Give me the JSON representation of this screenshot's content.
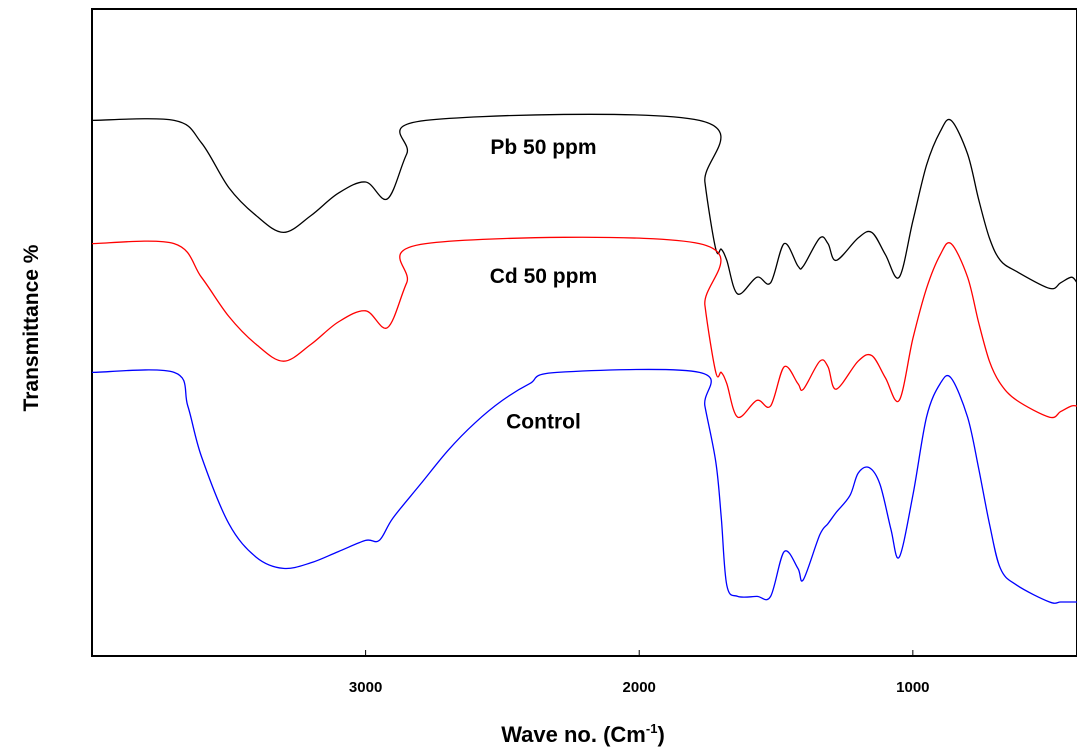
{
  "chart_data": {
    "type": "line",
    "title": "",
    "xlabel": "Wave no. (Cm",
    "xlabel_superscript": "-1",
    "xlabel_close": ")",
    "ylabel": "Transmittance %",
    "x_reversed": true,
    "xlim": [
      4000,
      400
    ],
    "ylim": [
      0,
      100
    ],
    "grid": false,
    "legend": "none",
    "x_ticks": [
      {
        "value": 3000,
        "label": "3000"
      },
      {
        "value": 2000,
        "label": "2000"
      },
      {
        "value": 1000,
        "label": "1000"
      }
    ],
    "series": [
      {
        "name": "Pb 50 ppm",
        "color": "#000000",
        "points": [
          [
            4000,
            91
          ],
          [
            3700,
            91
          ],
          [
            3600,
            87
          ],
          [
            3500,
            79
          ],
          [
            3400,
            74
          ],
          [
            3300,
            71
          ],
          [
            3200,
            74
          ],
          [
            3100,
            78
          ],
          [
            3000,
            80
          ],
          [
            2920,
            77
          ],
          [
            2850,
            85
          ],
          [
            2780,
            91
          ],
          [
            1780,
            91
          ],
          [
            1760,
            80
          ],
          [
            1720,
            68
          ],
          [
            1700,
            68
          ],
          [
            1680,
            66
          ],
          [
            1640,
            60
          ],
          [
            1570,
            63
          ],
          [
            1520,
            62
          ],
          [
            1470,
            69
          ],
          [
            1420,
            65
          ],
          [
            1400,
            65
          ],
          [
            1340,
            70
          ],
          [
            1310,
            69
          ],
          [
            1280,
            66
          ],
          [
            1200,
            70
          ],
          [
            1150,
            71
          ],
          [
            1100,
            67
          ],
          [
            1050,
            63
          ],
          [
            1000,
            73
          ],
          [
            950,
            83
          ],
          [
            900,
            89
          ],
          [
            860,
            91
          ],
          [
            800,
            85
          ],
          [
            760,
            77
          ],
          [
            720,
            70
          ],
          [
            680,
            66
          ],
          [
            620,
            64
          ],
          [
            500,
            61
          ],
          [
            460,
            62
          ],
          [
            420,
            63
          ],
          [
            400,
            62
          ]
        ]
      },
      {
        "name": "Cd 50 ppm",
        "color": "#ff0000",
        "points": [
          [
            4000,
            69
          ],
          [
            3700,
            69
          ],
          [
            3600,
            63
          ],
          [
            3500,
            56
          ],
          [
            3400,
            51
          ],
          [
            3300,
            48
          ],
          [
            3200,
            51
          ],
          [
            3100,
            55
          ],
          [
            3000,
            57
          ],
          [
            2920,
            54
          ],
          [
            2850,
            62
          ],
          [
            2780,
            69
          ],
          [
            1780,
            69
          ],
          [
            1760,
            58
          ],
          [
            1720,
            46
          ],
          [
            1700,
            46
          ],
          [
            1680,
            44
          ],
          [
            1640,
            38
          ],
          [
            1570,
            41
          ],
          [
            1520,
            40
          ],
          [
            1470,
            47
          ],
          [
            1420,
            44
          ],
          [
            1400,
            43
          ],
          [
            1340,
            48
          ],
          [
            1310,
            47
          ],
          [
            1280,
            43
          ],
          [
            1200,
            48
          ],
          [
            1150,
            49
          ],
          [
            1100,
            45
          ],
          [
            1050,
            41
          ],
          [
            1000,
            52
          ],
          [
            950,
            61
          ],
          [
            900,
            67
          ],
          [
            860,
            69
          ],
          [
            800,
            63
          ],
          [
            760,
            55
          ],
          [
            720,
            48
          ],
          [
            680,
            44
          ],
          [
            620,
            41
          ],
          [
            500,
            38
          ],
          [
            460,
            39
          ],
          [
            420,
            40
          ],
          [
            400,
            40
          ]
        ]
      },
      {
        "name": "Control",
        "color": "#0000ff",
        "points": [
          [
            4000,
            46
          ],
          [
            3700,
            46
          ],
          [
            3650,
            40
          ],
          [
            3600,
            31
          ],
          [
            3500,
            19
          ],
          [
            3400,
            13
          ],
          [
            3300,
            11
          ],
          [
            3200,
            12
          ],
          [
            3100,
            14
          ],
          [
            3000,
            16
          ],
          [
            2950,
            16
          ],
          [
            2900,
            20
          ],
          [
            2800,
            26
          ],
          [
            2700,
            32
          ],
          [
            2600,
            37
          ],
          [
            2500,
            41
          ],
          [
            2400,
            44
          ],
          [
            2300,
            46
          ],
          [
            1780,
            46
          ],
          [
            1760,
            40
          ],
          [
            1720,
            30
          ],
          [
            1700,
            20
          ],
          [
            1680,
            8
          ],
          [
            1640,
            6
          ],
          [
            1570,
            6
          ],
          [
            1520,
            6
          ],
          [
            1470,
            14
          ],
          [
            1420,
            11
          ],
          [
            1400,
            9
          ],
          [
            1340,
            17
          ],
          [
            1310,
            19
          ],
          [
            1280,
            21
          ],
          [
            1230,
            24
          ],
          [
            1200,
            28
          ],
          [
            1160,
            29
          ],
          [
            1120,
            26
          ],
          [
            1080,
            18
          ],
          [
            1050,
            13
          ],
          [
            1000,
            24
          ],
          [
            950,
            38
          ],
          [
            900,
            44
          ],
          [
            860,
            45
          ],
          [
            800,
            38
          ],
          [
            760,
            29
          ],
          [
            720,
            19
          ],
          [
            680,
            11
          ],
          [
            620,
            8
          ],
          [
            500,
            5
          ],
          [
            460,
            5
          ],
          [
            420,
            5
          ],
          [
            400,
            5
          ]
        ]
      }
    ],
    "series_labels": [
      {
        "series": 0,
        "text": "Pb 50 ppm",
        "x": 2350,
        "y": 85
      },
      {
        "series": 1,
        "text": "Cd 50 ppm",
        "x": 2350,
        "y": 62
      },
      {
        "series": 2,
        "text": "Control",
        "x": 2350,
        "y": 36
      }
    ]
  }
}
